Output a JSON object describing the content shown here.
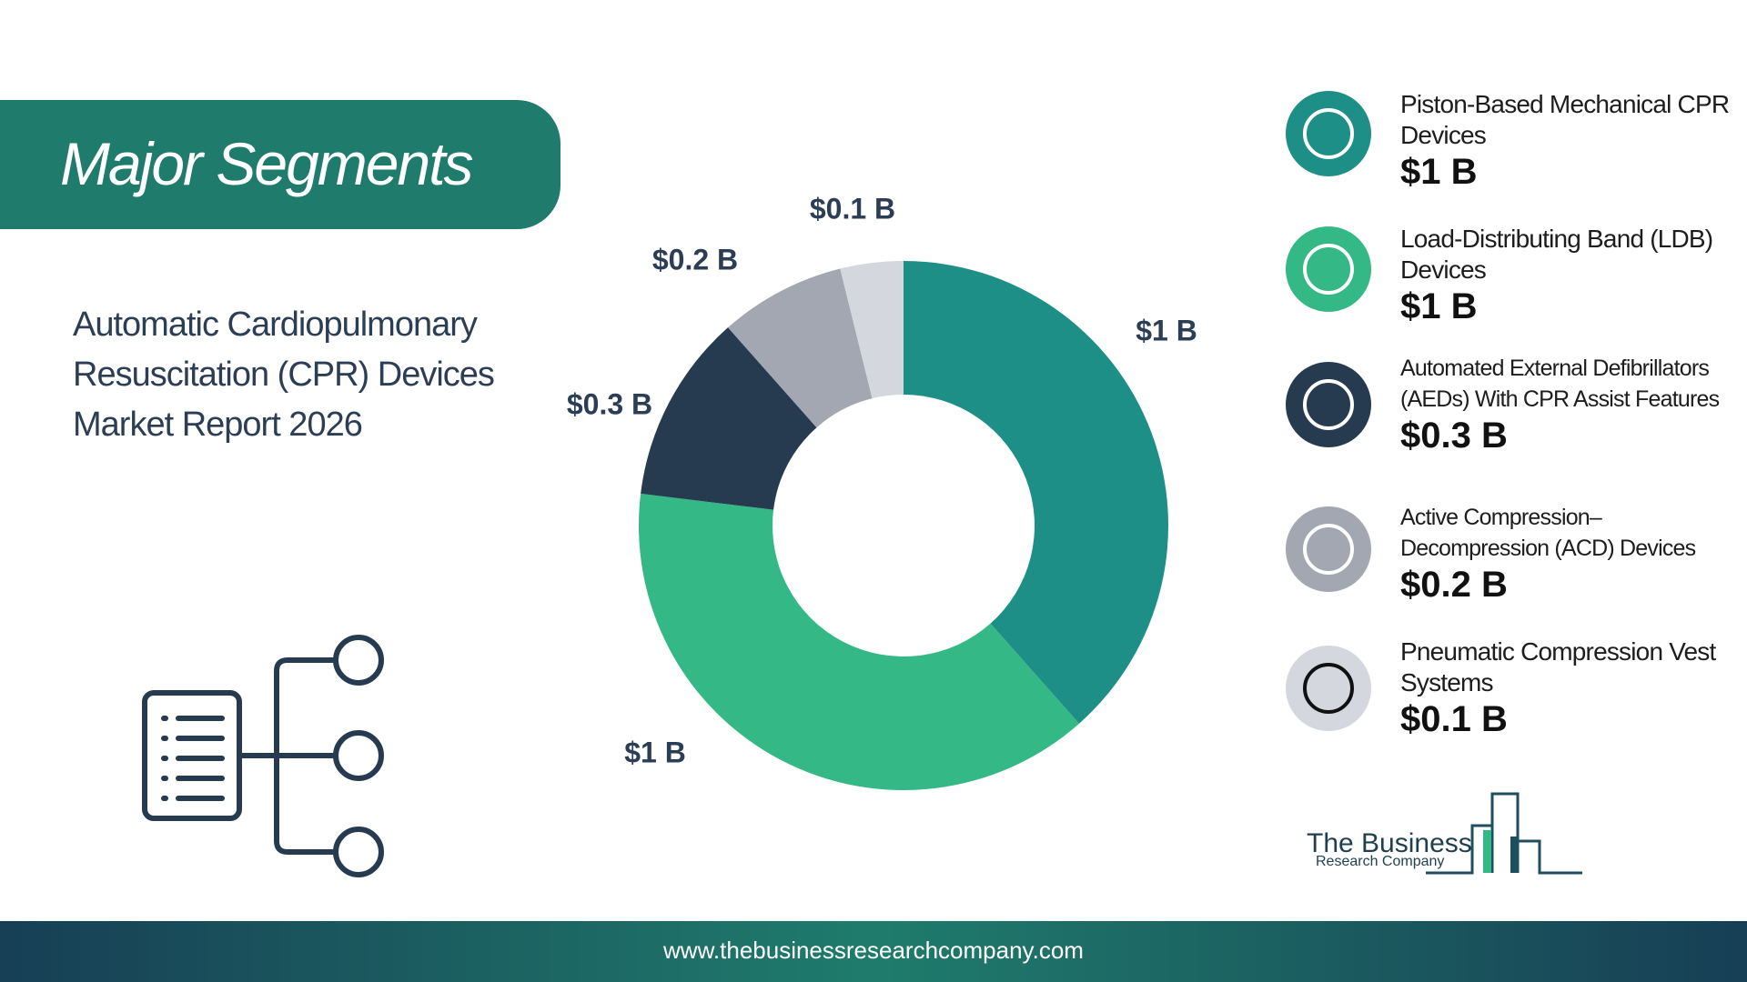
{
  "header": {
    "title": "Major Segments"
  },
  "report_title": "Automatic Cardiopulmonary Resuscitation (CPR) Devices Market Report 2026",
  "chart_data": {
    "type": "pie",
    "donut": true,
    "categories": [
      "Piston-Based Mechanical CPR Devices",
      "Load-Distributing Band (LDB) Devices",
      "Automated External Defibrillators (AEDs) With CPR Assist Features",
      "Active Compression–Decompression (ACD) Devices",
      "Pneumatic Compression Vest Systems"
    ],
    "values": [
      1,
      1,
      0.3,
      0.2,
      0.1
    ],
    "value_labels": [
      "$1 B",
      "$1 B",
      "$0.3 B",
      "$0.2 B",
      "$0.1 B"
    ],
    "colors": [
      "#1e8f86",
      "#34b886",
      "#263a50",
      "#a3a7b2",
      "#d5d7df"
    ]
  },
  "logo": {
    "name": "The Business",
    "subtitle": "Research Company"
  },
  "footer": {
    "url": "www.thebusinessresearchcompany.com"
  }
}
